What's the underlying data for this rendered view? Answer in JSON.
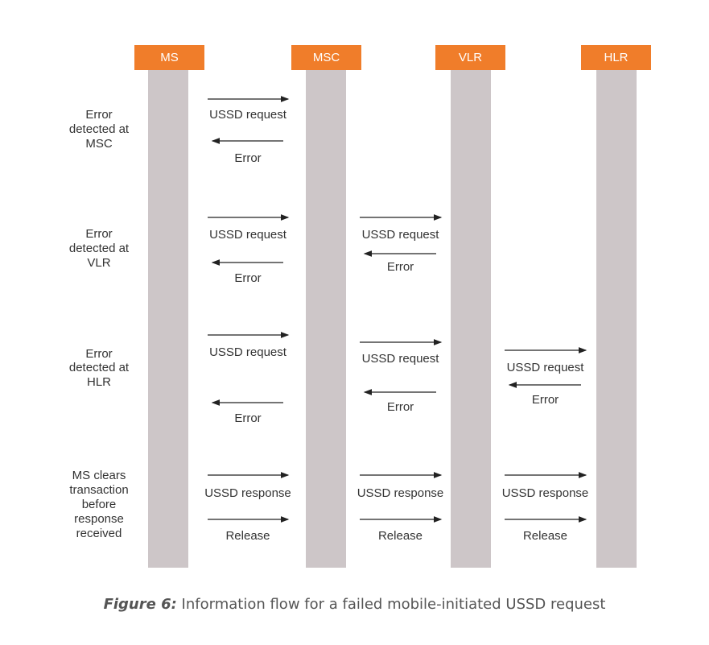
{
  "nodes": [
    {
      "label": "MS"
    },
    {
      "label": "MSC"
    },
    {
      "label": "VLR"
    },
    {
      "label": "HLR"
    }
  ],
  "scenarios": [
    {
      "label": [
        "Error",
        "detected at",
        "MSC"
      ],
      "messages": [
        {
          "label": "USSD request"
        },
        {
          "label": "Error"
        }
      ]
    },
    {
      "label": [
        "Error",
        "detected at",
        "VLR"
      ],
      "messages": [
        {
          "label": "USSD request"
        },
        {
          "label": "USSD request"
        },
        {
          "label": "Error"
        },
        {
          "label": "Error"
        }
      ]
    },
    {
      "label": [
        "Error",
        "detected at",
        "HLR"
      ],
      "messages": [
        {
          "label": "USSD request"
        },
        {
          "label": "USSD request"
        },
        {
          "label": "USSD request"
        },
        {
          "label": "Error"
        },
        {
          "label": "Error"
        },
        {
          "label": "Error"
        }
      ]
    },
    {
      "label": [
        "MS clears",
        "transaction",
        "before",
        "response",
        "received"
      ],
      "messages": [
        {
          "label": "USSD response"
        },
        {
          "label": "USSD response"
        },
        {
          "label": "USSD response"
        },
        {
          "label": "Release"
        },
        {
          "label": "Release"
        },
        {
          "label": "Release"
        }
      ]
    }
  ],
  "caption": {
    "bold": "Figure 6:",
    "text": "Information flow for a failed mobile-initiated USSD request"
  }
}
